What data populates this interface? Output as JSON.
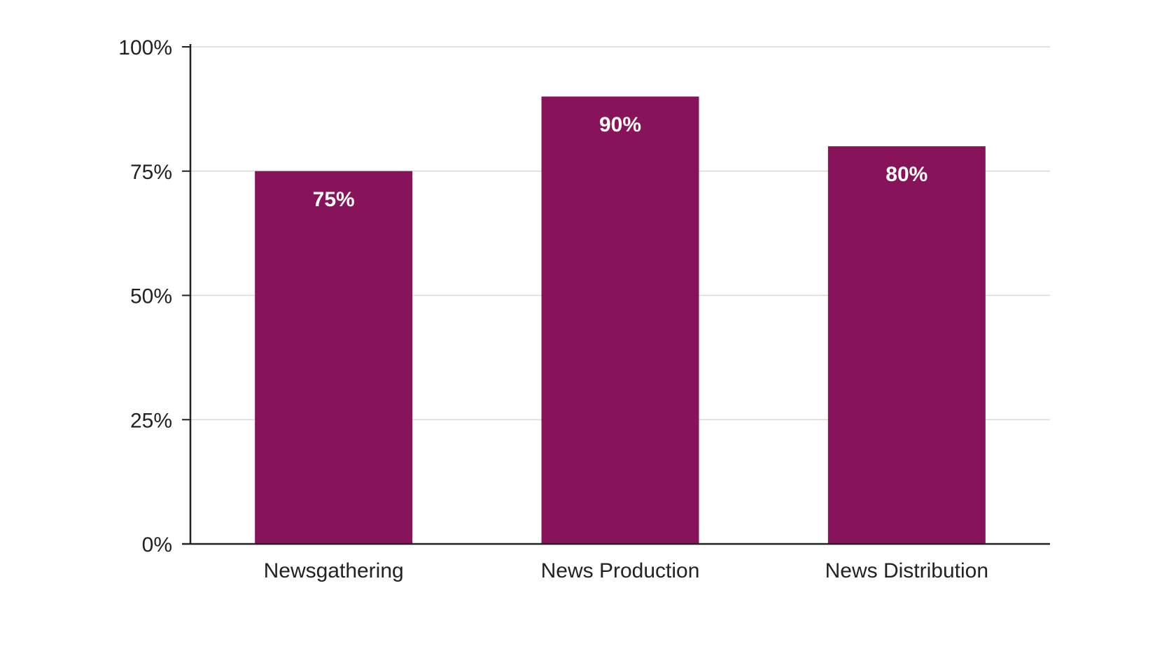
{
  "chart_data": {
    "type": "bar",
    "categories": [
      "Newsgathering",
      "News Production",
      "News Distribution"
    ],
    "values": [
      75,
      90,
      80
    ],
    "data_labels": [
      "75%",
      "90%",
      "80%"
    ],
    "ylim": [
      0,
      100
    ],
    "yticks": [
      0,
      25,
      50,
      75,
      100
    ],
    "ytick_labels": [
      "0%",
      "25%",
      "50%",
      "75%",
      "100%"
    ],
    "grid": true,
    "legend": "none"
  },
  "colors": {
    "bar": "#87145a",
    "gridline": "#d9d9d9",
    "axis": "#222222",
    "data_label": "#ffffff"
  }
}
